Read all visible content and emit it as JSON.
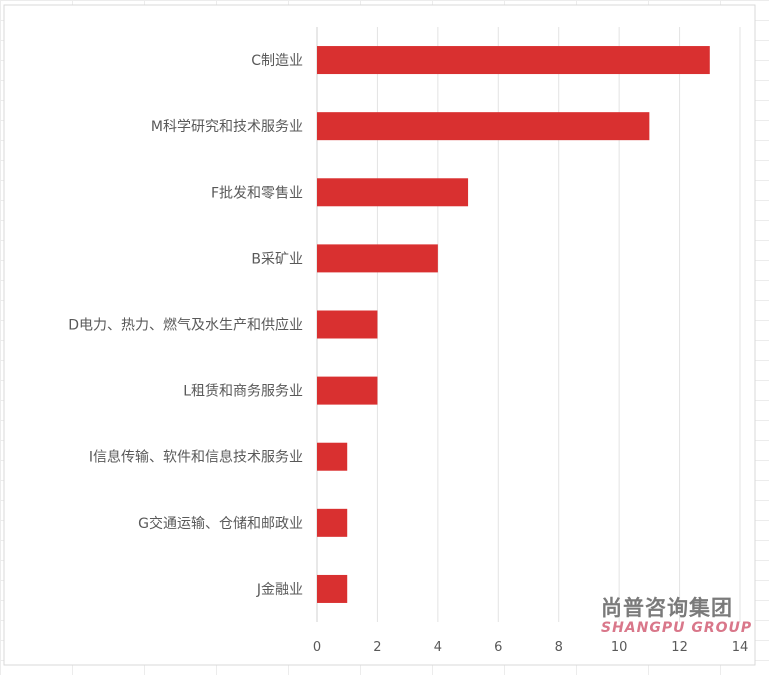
{
  "chart_data": {
    "type": "bar",
    "orientation": "horizontal",
    "categories": [
      "C制造业",
      "M科学研究和技术服务业",
      "F批发和零售业",
      "B采矿业",
      "D电力、热力、燃气及水生产和供应业",
      "L租赁和商务服务业",
      "I信息传输、软件和信息技术服务业",
      "G交通运输、仓储和邮政业",
      "J金融业"
    ],
    "values": [
      13,
      11,
      5,
      4,
      2,
      2,
      1,
      1,
      1
    ],
    "xlim": [
      0,
      14
    ],
    "xticks": [
      "0",
      "2",
      "4",
      "6",
      "8",
      "10",
      "12",
      "14"
    ],
    "grid": true,
    "bar_color": "#d93030",
    "title": "",
    "xlabel": "",
    "ylabel": ""
  },
  "watermark": {
    "cn": "尚普咨询集团",
    "en": "SHANGPU GROUP"
  }
}
